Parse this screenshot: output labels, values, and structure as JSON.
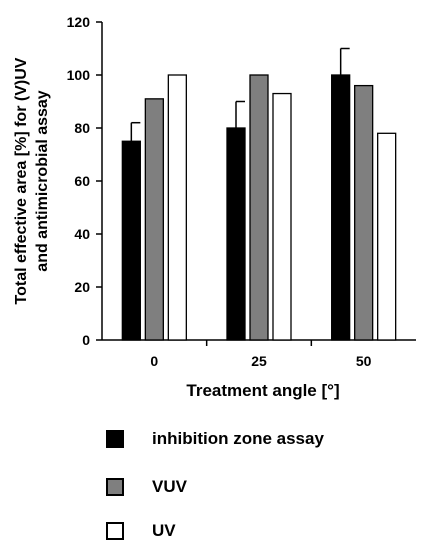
{
  "chart_data": {
    "type": "bar",
    "title": "",
    "xlabel": "Treatment angle [°]",
    "ylabel_lines": [
      "Total effective area [%] for (V)UV",
      "and antimicrobial assay"
    ],
    "categories": [
      "0",
      "25",
      "50"
    ],
    "ylim": [
      0,
      120
    ],
    "yticks": [
      0,
      20,
      40,
      60,
      80,
      100,
      120
    ],
    "grid": false,
    "legend_position": "bottom",
    "series": [
      {
        "name": "inhibition zone assay",
        "values": [
          75,
          80,
          100
        ],
        "errors": [
          7,
          10,
          10
        ],
        "color": "#000000"
      },
      {
        "name": "VUV",
        "values": [
          91,
          100,
          96
        ],
        "errors": [
          0,
          0,
          0
        ],
        "color": "#7f7f7f"
      },
      {
        "name": "UV",
        "values": [
          100,
          93,
          78
        ],
        "errors": [
          0,
          0,
          0
        ],
        "color": "#ffffff"
      }
    ]
  }
}
